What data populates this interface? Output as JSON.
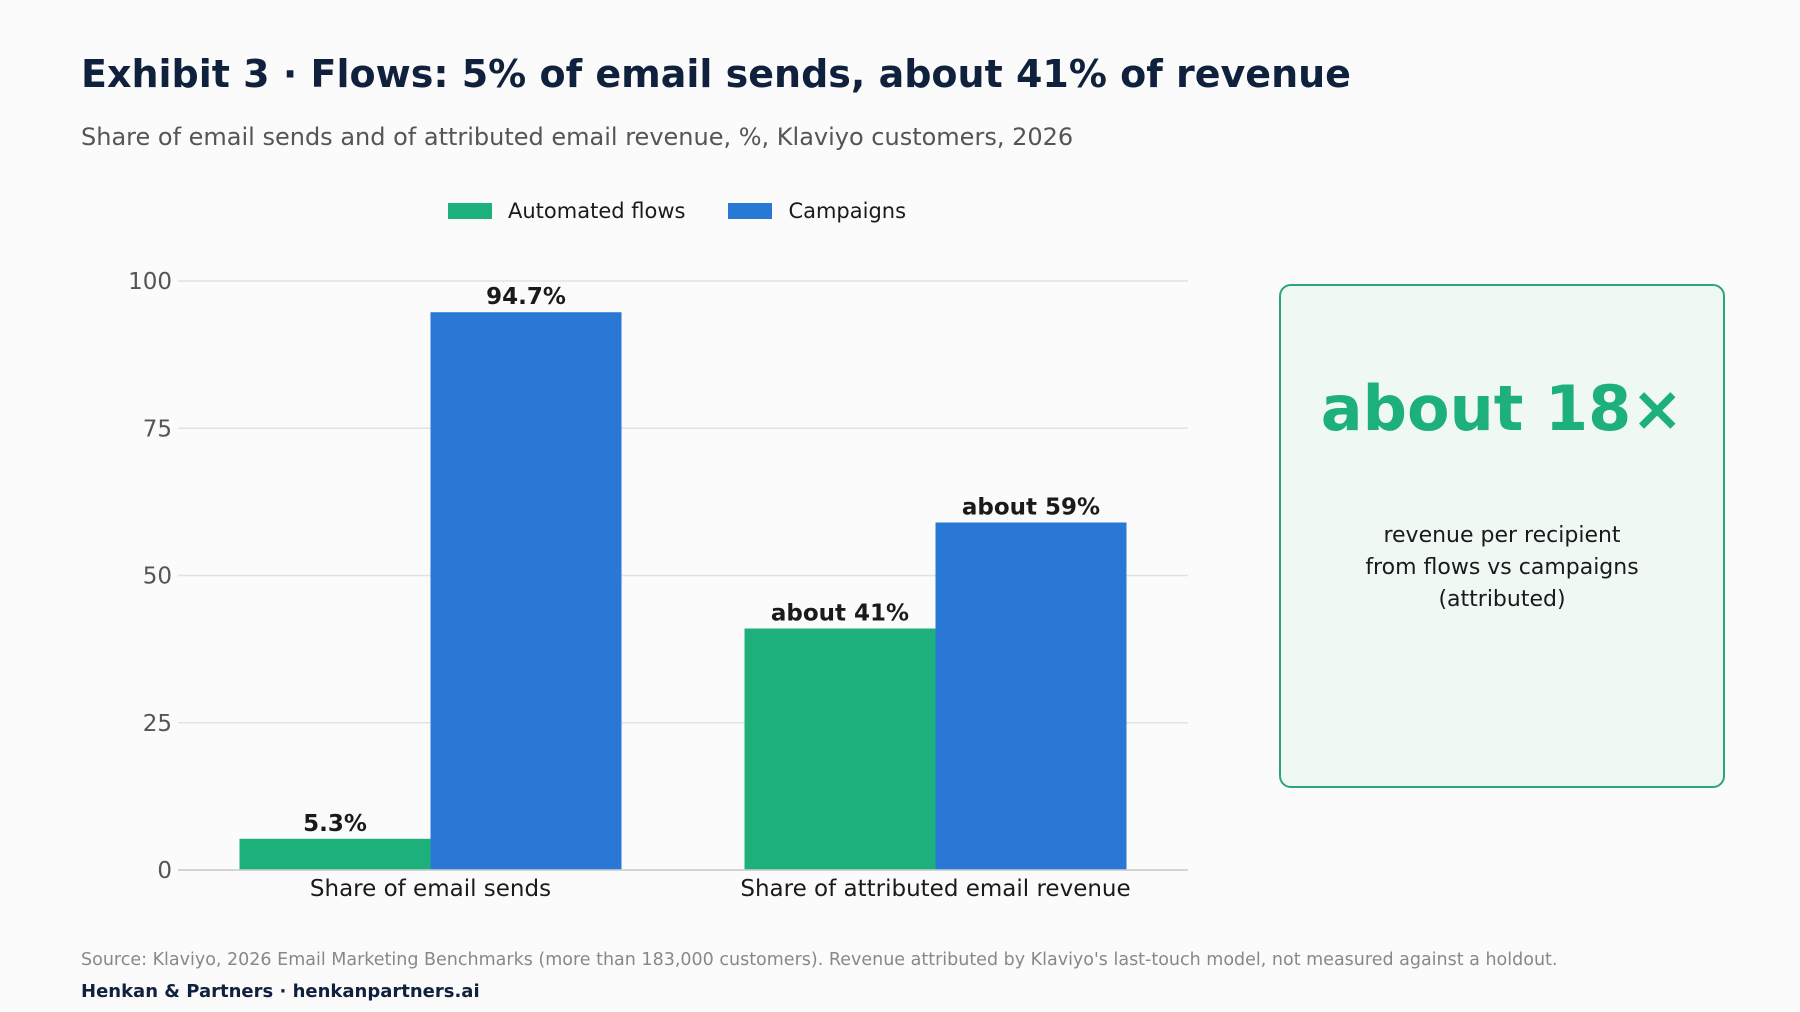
{
  "header": {
    "title": "Exhibit 3 · Flows: 5% of email sends, about 41% of revenue",
    "subtitle": "Share of email sends and of attributed email revenue, %, Klaviyo customers, 2026"
  },
  "chart_data": {
    "type": "bar",
    "categories": [
      "Share of email sends",
      "Share of attributed email revenue"
    ],
    "series": [
      {
        "name": "Automated flows",
        "color": "#1db07b",
        "values": [
          5.3,
          41
        ],
        "labels": [
          "5.3%",
          "about 41%"
        ]
      },
      {
        "name": "Campaigns",
        "color": "#2a78d6",
        "values": [
          94.7,
          59
        ],
        "labels": [
          "94.7%",
          "about 59%"
        ]
      }
    ],
    "ylim": [
      0,
      100
    ],
    "yticks": [
      0,
      25,
      50,
      75,
      100
    ],
    "grid": true,
    "legend": "top-center"
  },
  "callout": {
    "value": "about 18×",
    "lines": [
      "revenue per recipient",
      "from flows vs campaigns",
      "(attributed)"
    ]
  },
  "footer": {
    "source": "Source: Klaviyo, 2026 Email Marketing Benchmarks (more than 183,000 customers). Revenue attributed by Klaviyo's last-touch model, not measured against a holdout.",
    "brand": "Henkan & Partners · henkanpartners.ai"
  }
}
